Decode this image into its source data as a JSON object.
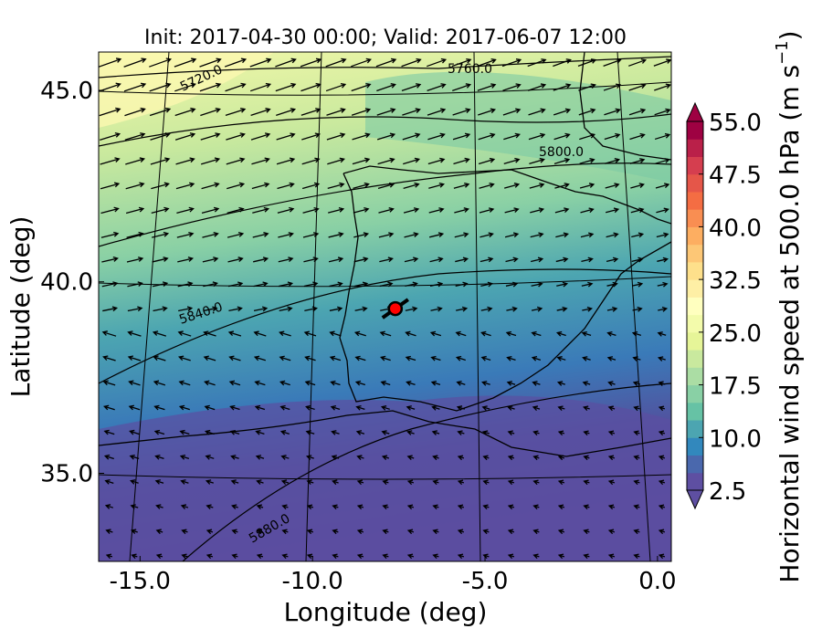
{
  "chart_data": {
    "type": "map",
    "title": "Init: 2017-04-30 00:00; Valid: 2017-06-07 12:00",
    "xlabel": "Longitude (deg)",
    "ylabel": "Latitude (deg)",
    "xlim": [
      -16.2,
      0.4
    ],
    "ylim": [
      32.7,
      46.0
    ],
    "xticks": [
      {
        "value": -15,
        "label": "-15.0"
      },
      {
        "value": -10,
        "label": "-10.0"
      },
      {
        "value": -5,
        "label": "-5.0"
      },
      {
        "value": 0,
        "label": "0.0"
      }
    ],
    "yticks": [
      {
        "value": 35,
        "label": "35.0"
      },
      {
        "value": 40,
        "label": "40.0"
      },
      {
        "value": 45,
        "label": "45.0"
      }
    ],
    "contour_labels": [
      "5720.0",
      "5760.0",
      "5800.0",
      "5840.0",
      "5880.0"
    ],
    "marker": {
      "x": -7.6,
      "y": 39.3,
      "color": "#ff0000"
    },
    "colorbar": {
      "label": "Horizontal wind speed at 500.0 hPa (m s",
      "label_exponent": "−1",
      "label_close": ")",
      "lim": [
        2.5,
        55
      ],
      "ticks": [
        {
          "value": 2.5,
          "label": "2.5"
        },
        {
          "value": 10,
          "label": "10.0"
        },
        {
          "value": 17.5,
          "label": "17.5"
        },
        {
          "value": 25,
          "label": "25.0"
        },
        {
          "value": 32.5,
          "label": "32.5"
        },
        {
          "value": 40,
          "label": "40.0"
        },
        {
          "value": 47.5,
          "label": "47.5"
        },
        {
          "value": 55,
          "label": "55.0"
        }
      ],
      "colors": [
        "#5e4fa2",
        "#4a68ad",
        "#3288bd",
        "#4ca5b1",
        "#66c2a5",
        "#89d0a5",
        "#abdda4",
        "#c9e99e",
        "#e6f598",
        "#f3fbab",
        "#ffffbf",
        "#feefa5",
        "#fee08b",
        "#fdc776",
        "#fdae61",
        "#f98e52",
        "#f46d43",
        "#e55649",
        "#d53e4f",
        "#ba2049",
        "#9e0142"
      ]
    }
  }
}
